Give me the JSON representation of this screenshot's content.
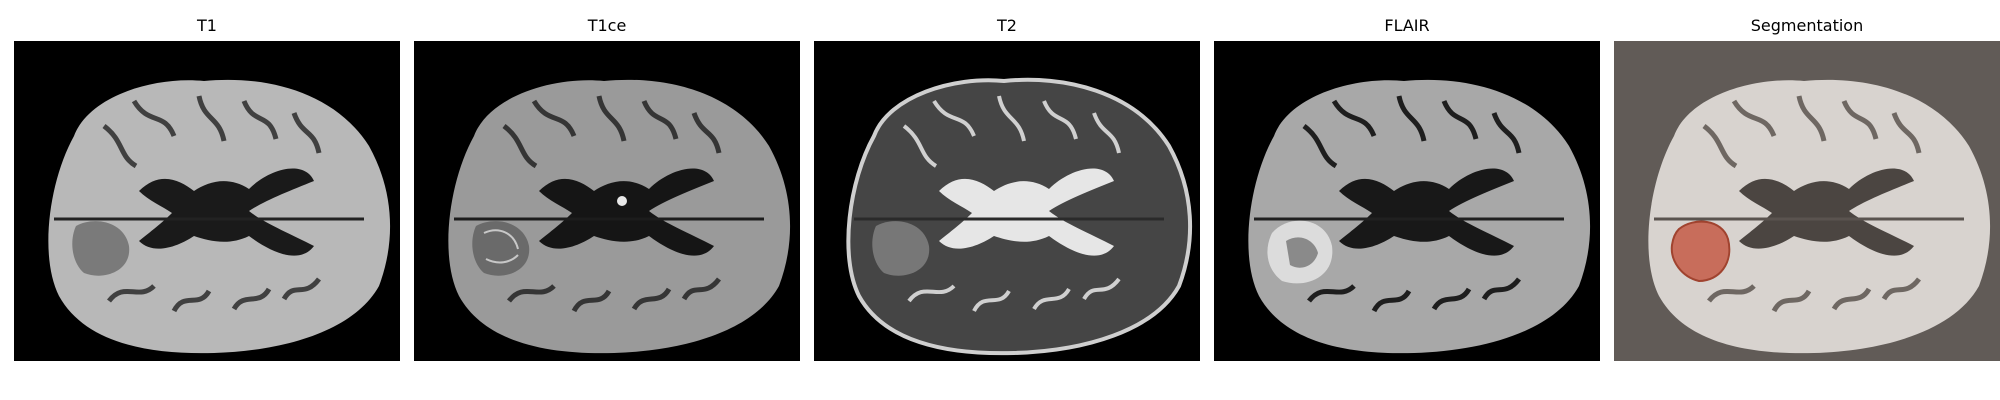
{
  "panels": [
    {
      "id": "t1",
      "title": "T1",
      "background": "#000000",
      "tone": "t1"
    },
    {
      "id": "t1ce",
      "title": "T1ce",
      "background": "#000000",
      "tone": "t1ce"
    },
    {
      "id": "t2",
      "title": "T2",
      "background": "#000000",
      "tone": "t2"
    },
    {
      "id": "flair",
      "title": "FLAIR",
      "background": "#000000",
      "tone": "flair"
    },
    {
      "id": "seg",
      "title": "Segmentation",
      "background": "#615b57",
      "tone": "seg",
      "overlay_color": "#c65a46"
    }
  ]
}
